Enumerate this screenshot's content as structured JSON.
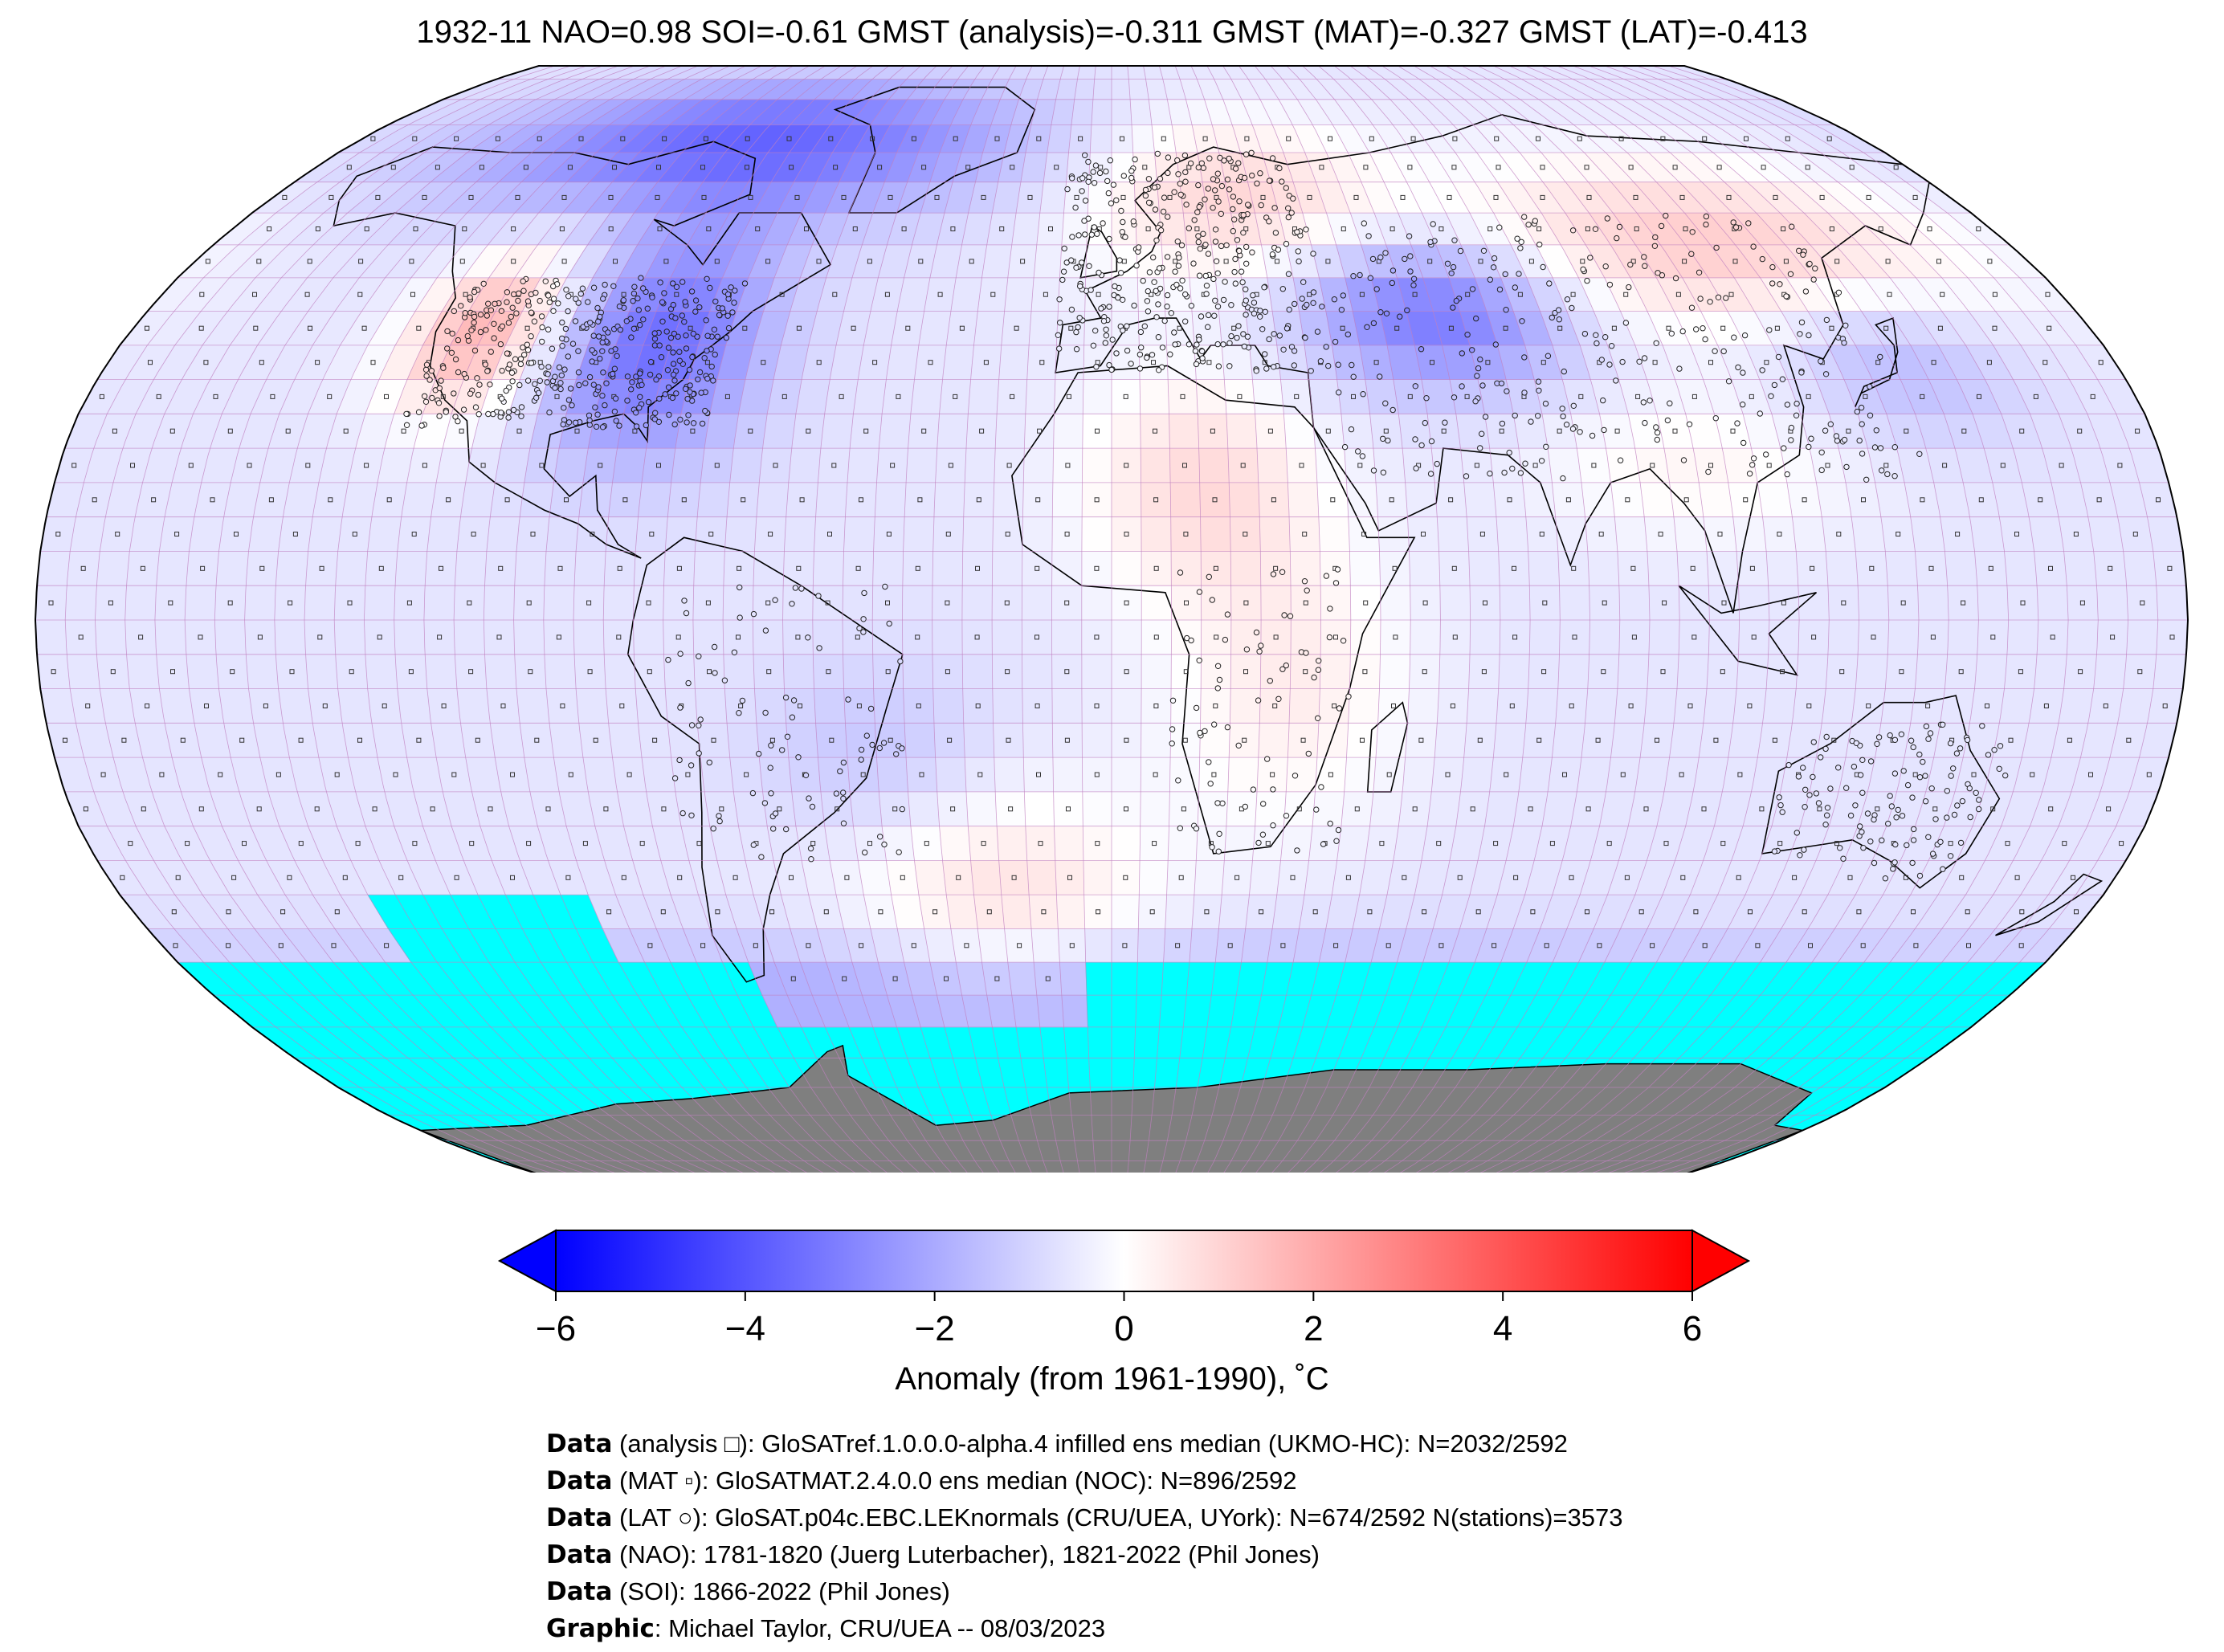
{
  "title": "1932-11 NAO=0.98 SOI=-0.61 GMST (analysis)=-0.311 GMST (MAT)=-0.327 GMST (LAT)=-0.413",
  "colors": {
    "cold": "#0000ff",
    "neutral": "#ffffff",
    "warm": "#ff0000",
    "nodata": "#00ffff",
    "antarctica": "#7f7f7f",
    "gridlines": "#c080c0"
  },
  "colorbar": {
    "min": -6,
    "max": 6,
    "ticks": [
      "−6",
      "−4",
      "−2",
      "0",
      "2",
      "4",
      "6"
    ],
    "tick_values": [
      -6,
      -4,
      -2,
      0,
      2,
      4,
      6
    ],
    "label": "Anomaly (from 1961-1990), ˚C",
    "extend": "both"
  },
  "map": {
    "projection": "Robinson",
    "central_longitude": 0,
    "grid_resolution_deg": 5,
    "features": [
      "temperature anomaly grid",
      "coastlines",
      "country borders",
      "station markers"
    ],
    "regional_anomalies_degC": [
      {
        "region": "Arctic Canada / Greenland",
        "anomaly": -3.5
      },
      {
        "region": "Western North America",
        "anomaly": 2.5
      },
      {
        "region": "Eastern North America",
        "anomaly": -3.0
      },
      {
        "region": "Europe / Scandinavia",
        "anomaly": 1.5
      },
      {
        "region": "Central Asia",
        "anomaly": -3.0
      },
      {
        "region": "East Siberia",
        "anomaly": 2.0
      },
      {
        "region": "Sahara",
        "anomaly": 1.5
      },
      {
        "region": "Tropical Pacific",
        "anomaly": -0.5
      },
      {
        "region": "Southern Ocean",
        "anomaly": -1.5
      },
      {
        "region": "South Atlantic",
        "anomaly": 1.5
      }
    ]
  },
  "credits": [
    {
      "head": "Data",
      "text": " (analysis □): GloSATref.1.0.0.0-alpha.4 infilled ens median (UKMO-HC): N=2032/2592"
    },
    {
      "head": "Data",
      "text": " (MAT ▫): GloSATMAT.2.4.0.0 ens median (NOC): N=896/2592"
    },
    {
      "head": "Data",
      "text": " (LAT ○): GloSAT.p04c.EBC.LEKnormals (CRU/UEA, UYork): N=674/2592 N(stations)=3573"
    },
    {
      "head": "Data",
      "text": " (NAO): 1781-1820 (Juerg Luterbacher), 1821-2022 (Phil Jones)"
    },
    {
      "head": "Data",
      "text": " (SOI): 1866-2022 (Phil Jones)"
    },
    {
      "head": "Graphic",
      "text": ": Michael Taylor, CRU/UEA -- 08/03/2023"
    }
  ]
}
